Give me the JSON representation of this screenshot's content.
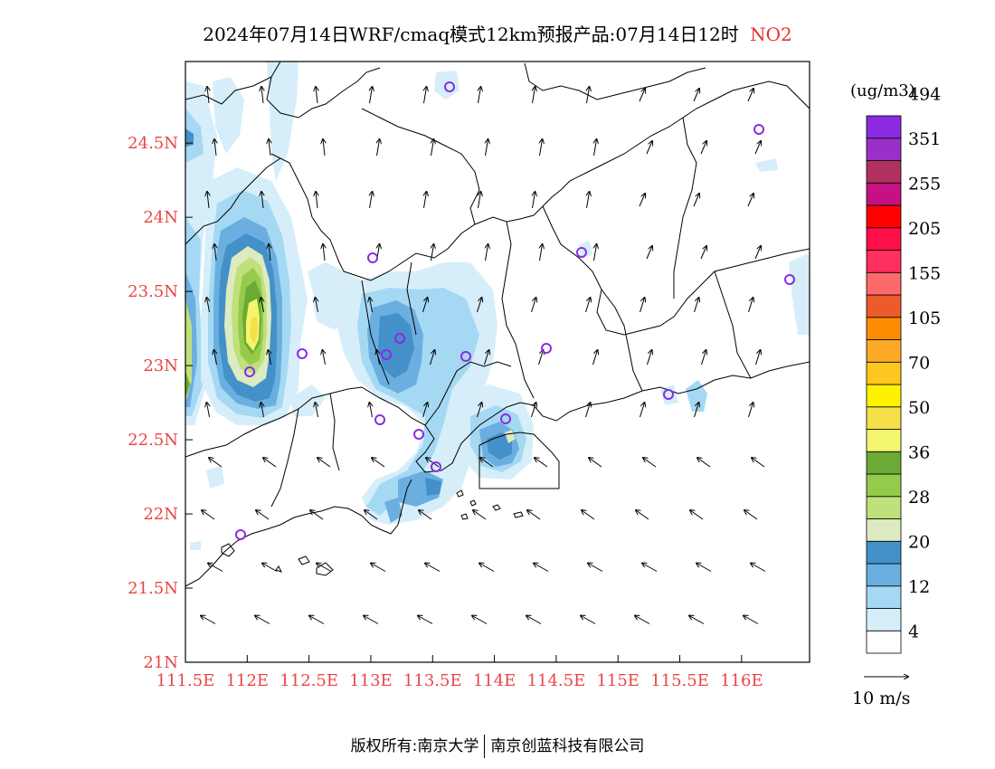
{
  "title": {
    "main": "2024年07月14日WRF/cmaq模式12km预报产品:07月14日12时",
    "pollutant": "NO2"
  },
  "axes": {
    "lat_labels": [
      "24.5N",
      "24N",
      "23.5N",
      "23N",
      "22.5N",
      "22N",
      "21.5N",
      "21N"
    ],
    "lat_values": [
      24.5,
      24,
      23.5,
      23,
      22.5,
      22,
      21.5,
      21
    ],
    "lon_labels": [
      "111.5E",
      "112E",
      "112.5E",
      "113E",
      "113.5E",
      "114E",
      "114.5E",
      "115E",
      "115.5E",
      "116E"
    ],
    "lon_values": [
      111.5,
      112,
      112.5,
      113,
      113.5,
      114,
      114.5,
      115,
      115.5,
      116
    ],
    "lat_range": [
      21,
      25.05
    ],
    "lon_range": [
      111.5,
      116.55
    ],
    "label_color": "#e84545"
  },
  "legend": {
    "unit": "(ug/m3)",
    "colors": [
      "#ffffff",
      "#d6eefa",
      "#a5d8f3",
      "#6bafe0",
      "#4490c8",
      "#dcebc0",
      "#bfe07a",
      "#95cb4a",
      "#6aaa35",
      "#f4f56e",
      "#f5e04a",
      "#fff200",
      "#ffc81e",
      "#fdaa28",
      "#fd8c00",
      "#ee5a2a",
      "#fe6a6a",
      "#ff2f5f",
      "#ff0f4a",
      "#ff0000",
      "#c61183",
      "#b03060",
      "#9b30c8",
      "#8a2be2"
    ],
    "labels": [
      "4",
      "12",
      "20",
      "28",
      "36",
      "50",
      "70",
      "105",
      "155",
      "205",
      "255",
      "351",
      "494"
    ]
  },
  "wind_scale": {
    "label": "10 m/s"
  },
  "stations_color": "#8a2be2",
  "copyright": {
    "left": "版权所有:南京大学",
    "right": "南京创蓝科技有限公司"
  }
}
